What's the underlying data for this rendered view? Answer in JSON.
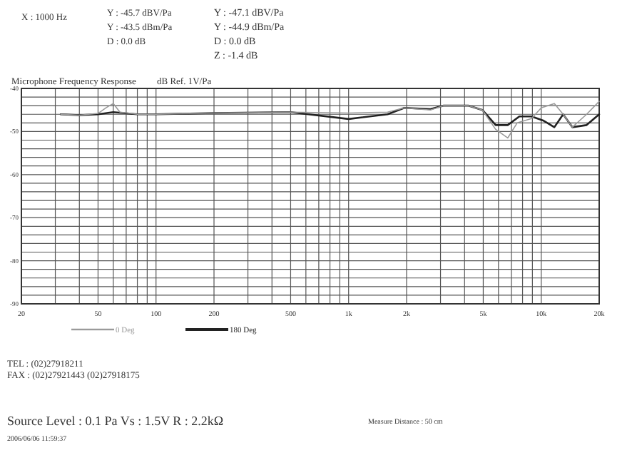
{
  "chart_data": {
    "type": "line",
    "title": "Microphone Frequency Response",
    "ylabel": "dB Ref. 1V/Pa",
    "log": "x",
    "xlim": [
      20,
      20000
    ],
    "xticks": [
      20,
      {
        "value": 30,
        "label": null
      },
      {
        "value": 40,
        "label": null
      },
      50,
      {
        "value": 60,
        "label": null
      },
      {
        "value": 70,
        "label": null
      },
      {
        "value": 80,
        "label": null
      },
      {
        "value": 90,
        "label": null
      },
      100,
      200,
      {
        "value": 300,
        "label": null
      },
      {
        "value": 400,
        "label": null
      },
      500,
      {
        "value": 600,
        "label": null
      },
      {
        "value": 700,
        "label": null
      },
      {
        "value": 800,
        "label": null
      },
      {
        "value": 900,
        "label": null
      },
      {
        "value": 1000,
        "label": "1k"
      },
      {
        "value": 2000,
        "label": "2k"
      },
      {
        "value": 3000,
        "label": null
      },
      {
        "value": 4000,
        "label": null
      },
      {
        "value": 5000,
        "label": "5k"
      },
      {
        "value": 6000,
        "label": null
      },
      {
        "value": 7000,
        "label": null
      },
      {
        "value": 8000,
        "label": null
      },
      {
        "value": 9000,
        "label": null
      },
      {
        "value": 10000,
        "label": "10k"
      },
      {
        "value": 20000,
        "label": "20k"
      }
    ],
    "ylim": [
      -90,
      -40
    ],
    "yticks": [
      -90,
      {
        "value": -88,
        "label": null
      },
      {
        "value": -86,
        "label": null
      },
      {
        "value": -84,
        "label": null
      },
      {
        "value": -82,
        "label": null
      },
      -80,
      {
        "value": -78,
        "label": null
      },
      {
        "value": -76,
        "label": null
      },
      {
        "value": -74,
        "label": null
      },
      {
        "value": -72,
        "label": null
      },
      -70,
      {
        "value": -68,
        "label": null
      },
      {
        "value": -66,
        "label": null
      },
      {
        "value": -64,
        "label": null
      },
      {
        "value": -62,
        "label": null
      },
      -60,
      {
        "value": -58,
        "label": null
      },
      {
        "value": -56,
        "label": null
      },
      {
        "value": -54,
        "label": null
      },
      {
        "value": -52,
        "label": null
      },
      -50,
      {
        "value": -48,
        "label": null
      },
      {
        "value": -46,
        "label": null
      },
      {
        "value": -44,
        "label": null
      },
      {
        "value": -42,
        "label": null
      },
      -40
    ],
    "grid": true,
    "legend": "bottom",
    "series": [
      {
        "name": "0 Deg",
        "color": "#9a9a9a",
        "x": [
          32,
          40,
          50,
          55,
          60,
          65,
          80,
          100,
          200,
          500,
          1000,
          1593,
          1945,
          2660,
          3100,
          4200,
          4950,
          5800,
          6700,
          7500,
          8900,
          10000,
          11700,
          13000,
          14500,
          17200,
          20000
        ],
        "values": [
          -46,
          -46.2,
          -45.8,
          -44.5,
          -43.5,
          -45.5,
          -46,
          -46,
          -45.7,
          -45.5,
          -45.7,
          -45.5,
          -44.5,
          -45,
          -44,
          -44,
          -45,
          -49.5,
          -51.5,
          -48,
          -47,
          -44.5,
          -43.5,
          -46,
          -49,
          -46,
          -43
        ]
      },
      {
        "name": "180 Deg",
        "color": "#222222",
        "x": [
          32,
          40,
          50,
          60,
          80,
          100,
          200,
          500,
          1000,
          1593,
          1945,
          2660,
          3100,
          4200,
          4950,
          5800,
          6700,
          7700,
          8900,
          10300,
          11700,
          13000,
          14500,
          17200,
          20000
        ],
        "values": [
          -46,
          -46.2,
          -46,
          -45.5,
          -46,
          -46,
          -45.7,
          -45.5,
          -47.1,
          -46,
          -44.5,
          -44.8,
          -44,
          -44,
          -45,
          -48.5,
          -48.5,
          -46.5,
          -46.5,
          -47.5,
          -49,
          -46,
          -49,
          -48.5,
          -46
        ]
      }
    ],
    "annotations": [
      "X : 1000 Hz",
      "Y : -45.7 dBV/Pa",
      "Y : -43.5 dBm/Pa",
      "D : 0.0 dB",
      "Y : -47.1 dBV/Pa",
      "Y : -44.9 dBm/Pa",
      "D : 0.0 dB",
      "Z : -1.4 dB",
      "TEL : (02)27918211",
      "FAX : (02)27921443  (02)27918175",
      "Source Level : 0.1 Pa  Vs : 1.5V  R : 2.2kΩ",
      "2006/06/06 11:59:37",
      "Measure Distance : 50 cm"
    ]
  }
}
